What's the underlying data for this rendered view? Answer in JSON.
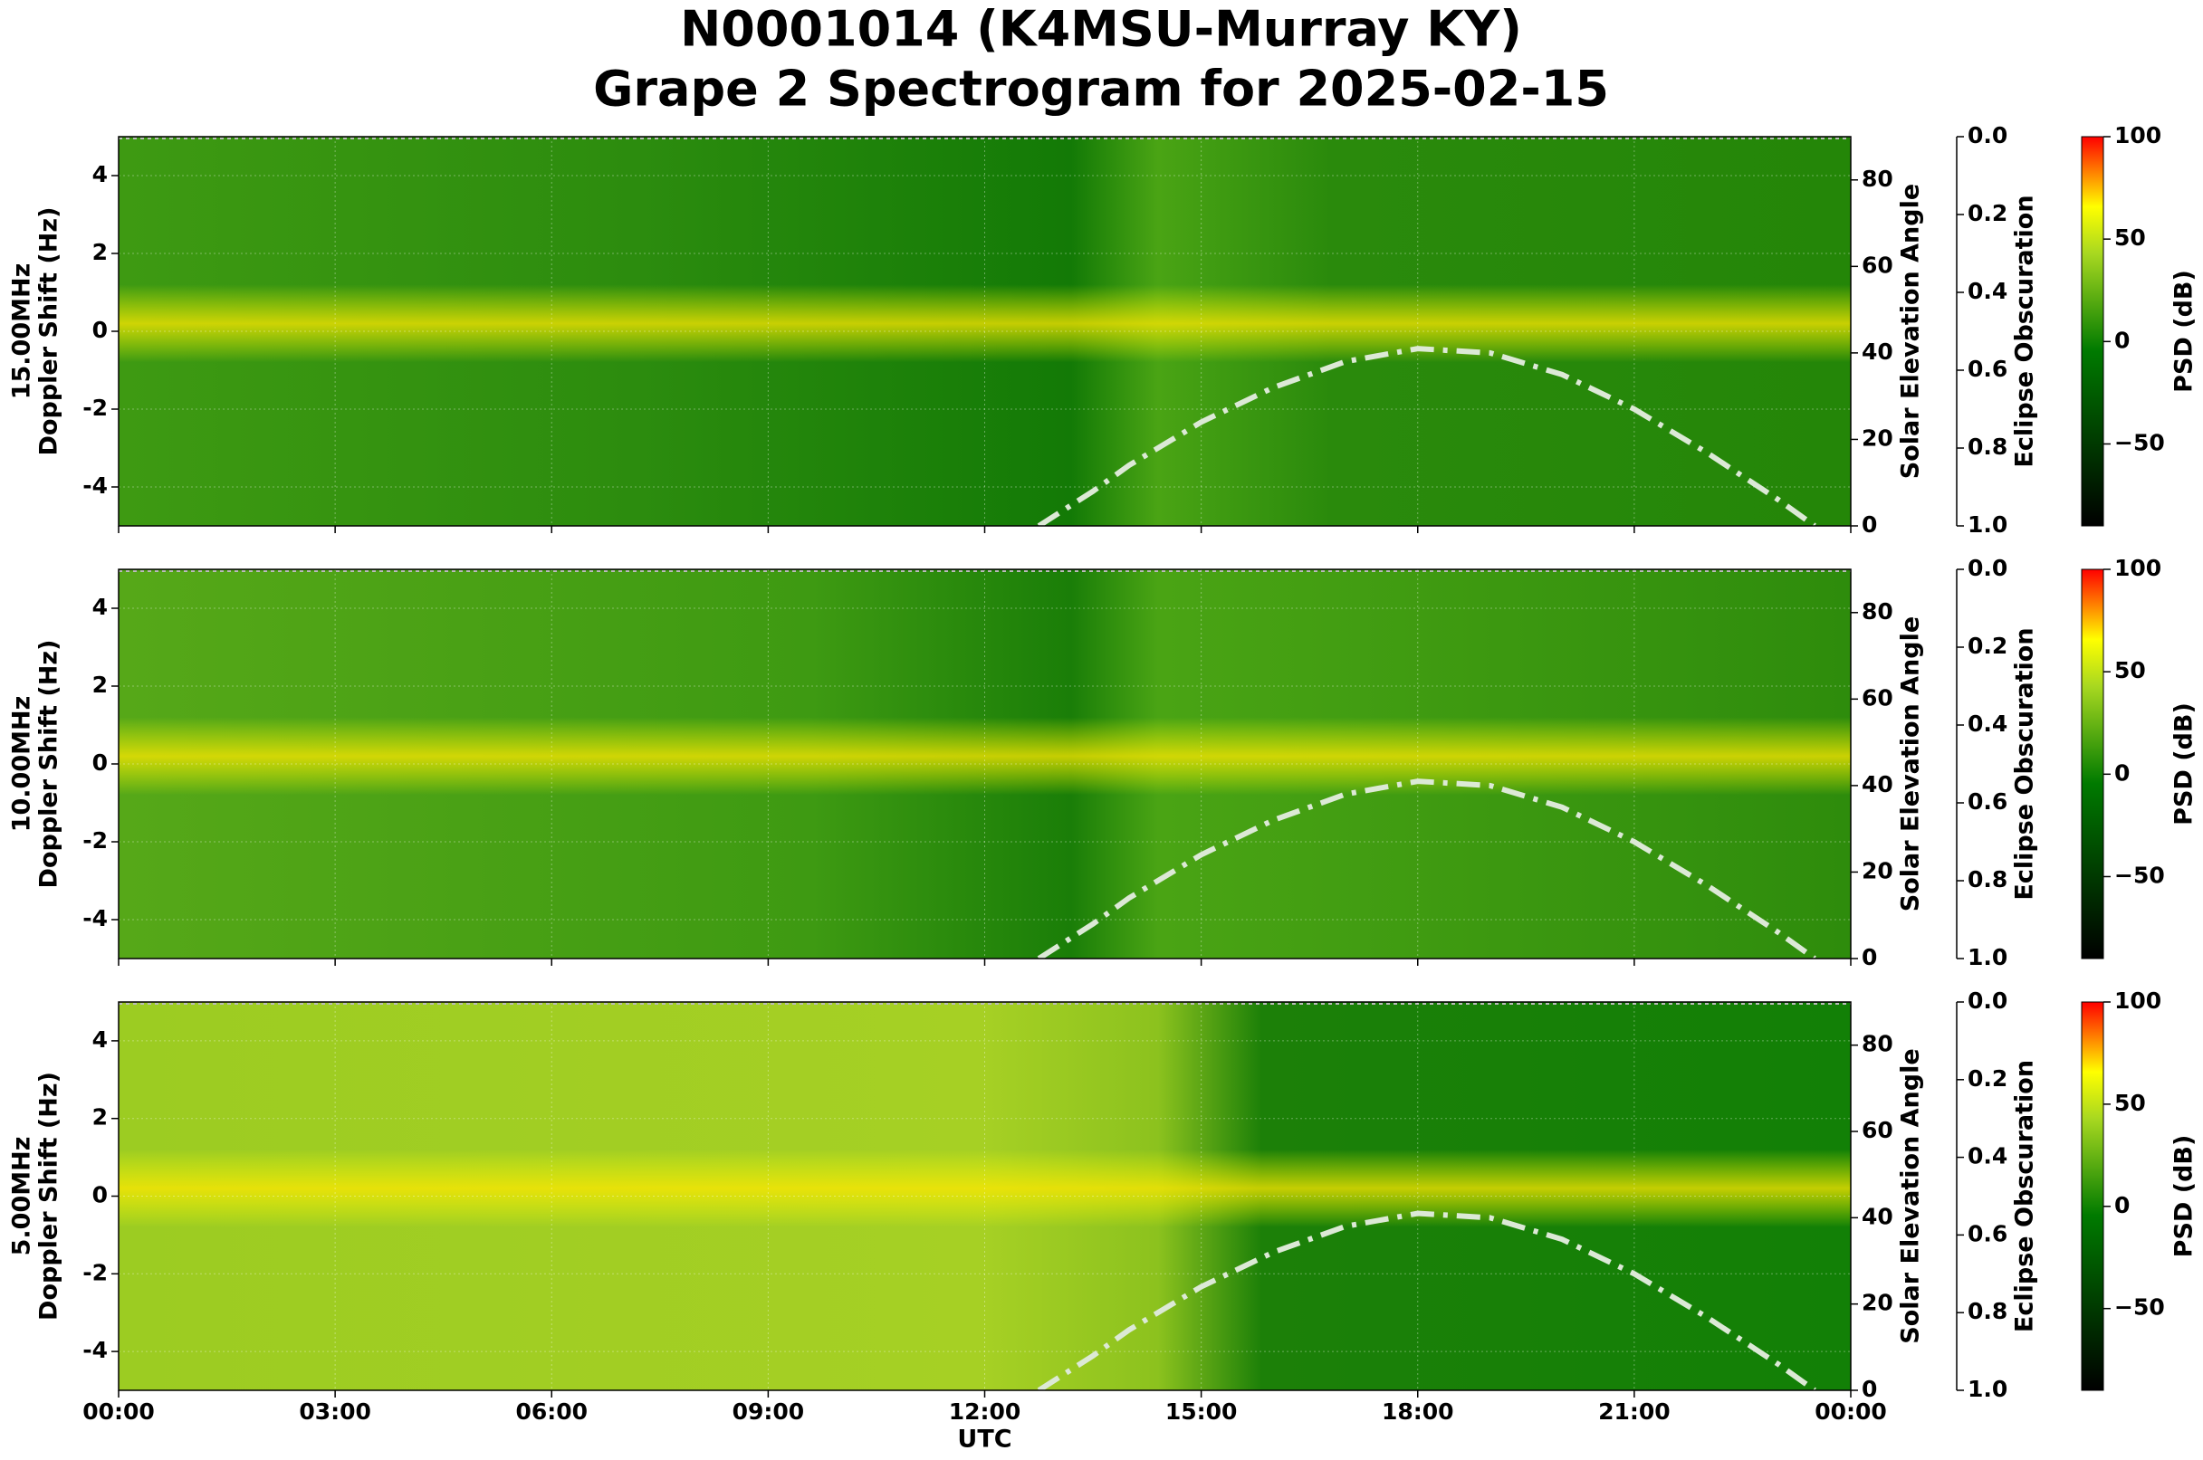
{
  "title": [
    "N0001014 (K4MSU-Murray KY)",
    "Grape 2 Spectrogram for 2025-02-15"
  ],
  "chart_data": [
    {
      "type": "spectrogram",
      "ylabel": [
        "15.00MHz",
        "Doppler Shift (Hz)"
      ],
      "xlim": [
        0,
        24
      ],
      "xticks": [
        0,
        3,
        6,
        9,
        12,
        15,
        18,
        21,
        24
      ],
      "ylim": [
        -5,
        5
      ],
      "yticks": [
        -4,
        -2,
        0,
        2,
        4
      ],
      "y2label": "Solar Elevation Angle",
      "y2lim": [
        0,
        90
      ],
      "y2ticks": [
        0,
        20,
        40,
        60,
        80
      ],
      "y3label": "Eclipse Obscuration",
      "y3lim": [
        1,
        0
      ],
      "y3ticks": [
        {
          "value": 0,
          "label": "0.0"
        },
        0.2,
        0.4,
        0.6,
        0.8,
        {
          "value": 1,
          "label": "1.0"
        }
      ],
      "colorbar": {
        "label": "PSD (dB)",
        "lim": [
          -90,
          100
        ],
        "ticks": [
          {
            "value": -50,
            "label": "−50"
          },
          0,
          50,
          100
        ]
      },
      "grid": true,
      "series": [
        {
          "color": "#dce9d6",
          "axis": "y2",
          "x": [
            12.75,
            13.5,
            14,
            15,
            16,
            17,
            18,
            19,
            20,
            21,
            22,
            23,
            23.5
          ],
          "values": [
            0,
            8,
            14,
            24,
            32,
            38,
            41,
            40,
            35,
            27,
            17,
            6,
            0
          ]
        }
      ]
    },
    {
      "type": "spectrogram",
      "ylabel": [
        "10.00MHz",
        "Doppler Shift (Hz)"
      ],
      "xlim": [
        0,
        24
      ],
      "xticks": [
        0,
        3,
        6,
        9,
        12,
        15,
        18,
        21,
        24
      ],
      "ylim": [
        -5,
        5
      ],
      "yticks": [
        -4,
        -2,
        0,
        2,
        4
      ],
      "y2label": "Solar Elevation Angle",
      "y2lim": [
        0,
        90
      ],
      "y2ticks": [
        0,
        20,
        40,
        60,
        80
      ],
      "y3label": "Eclipse Obscuration",
      "y3lim": [
        1,
        0
      ],
      "y3ticks": [
        {
          "value": 0,
          "label": "0.0"
        },
        0.2,
        0.4,
        0.6,
        0.8,
        {
          "value": 1,
          "label": "1.0"
        }
      ],
      "colorbar": {
        "label": "PSD (dB)",
        "lim": [
          -90,
          100
        ],
        "ticks": [
          {
            "value": -50,
            "label": "−50"
          },
          0,
          50,
          100
        ]
      },
      "grid": true,
      "series": [
        {
          "color": "#dce9d6",
          "axis": "y2",
          "x": [
            12.75,
            13.5,
            14,
            15,
            16,
            17,
            18,
            19,
            20,
            21,
            22,
            23,
            23.5
          ],
          "values": [
            0,
            8,
            14,
            24,
            32,
            38,
            41,
            40,
            35,
            27,
            17,
            6,
            0
          ]
        }
      ]
    },
    {
      "type": "spectrogram",
      "ylabel": [
        "5.00MHz",
        "Doppler Shift (Hz)"
      ],
      "xlabel": "UTC",
      "xlim": [
        0,
        24
      ],
      "xticks": [
        {
          "value": 0,
          "label": "00:00"
        },
        {
          "value": 3,
          "label": "03:00"
        },
        {
          "value": 6,
          "label": "06:00"
        },
        {
          "value": 9,
          "label": "09:00"
        },
        {
          "value": 12,
          "label": "12:00"
        },
        {
          "value": 15,
          "label": "15:00"
        },
        {
          "value": 18,
          "label": "18:00"
        },
        {
          "value": 21,
          "label": "21:00"
        },
        {
          "value": 24,
          "label": "00:00"
        }
      ],
      "ylim": [
        -5,
        5
      ],
      "yticks": [
        -4,
        -2,
        0,
        2,
        4
      ],
      "y2label": "Solar Elevation Angle",
      "y2lim": [
        0,
        90
      ],
      "y2ticks": [
        0,
        20,
        40,
        60,
        80
      ],
      "y3label": "Eclipse Obscuration",
      "y3lim": [
        1,
        0
      ],
      "y3ticks": [
        {
          "value": 0,
          "label": "0.0"
        },
        0.2,
        0.4,
        0.6,
        0.8,
        {
          "value": 1,
          "label": "1.0"
        }
      ],
      "colorbar": {
        "label": "PSD (dB)",
        "lim": [
          -90,
          100
        ],
        "ticks": [
          {
            "value": -50,
            "label": "−50"
          },
          0,
          50,
          100
        ]
      },
      "grid": true,
      "series": [
        {
          "color": "#dce9d6",
          "axis": "y2",
          "x": [
            12.75,
            13.5,
            14,
            15,
            16,
            17,
            18,
            19,
            20,
            21,
            22,
            23,
            23.5
          ],
          "values": [
            0,
            8,
            14,
            24,
            32,
            38,
            41,
            40,
            35,
            27,
            17,
            6,
            0
          ]
        }
      ]
    }
  ]
}
